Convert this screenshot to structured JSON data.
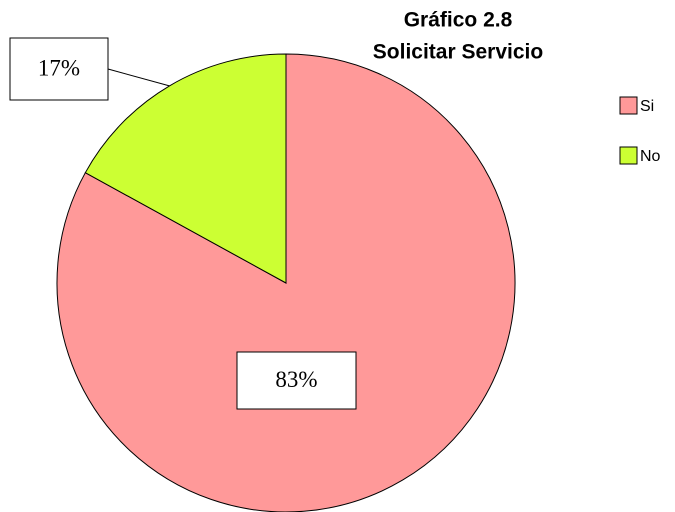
{
  "chart_data": {
    "type": "pie",
    "title": "Gráfico 2.8",
    "subtitle": "Solicitar Servicio",
    "categories": [
      "Si",
      "No"
    ],
    "values": [
      83,
      17
    ],
    "value_labels": [
      "83%",
      "17%"
    ],
    "colors": [
      "#ff9999",
      "#ccff33"
    ],
    "legend": "right"
  }
}
